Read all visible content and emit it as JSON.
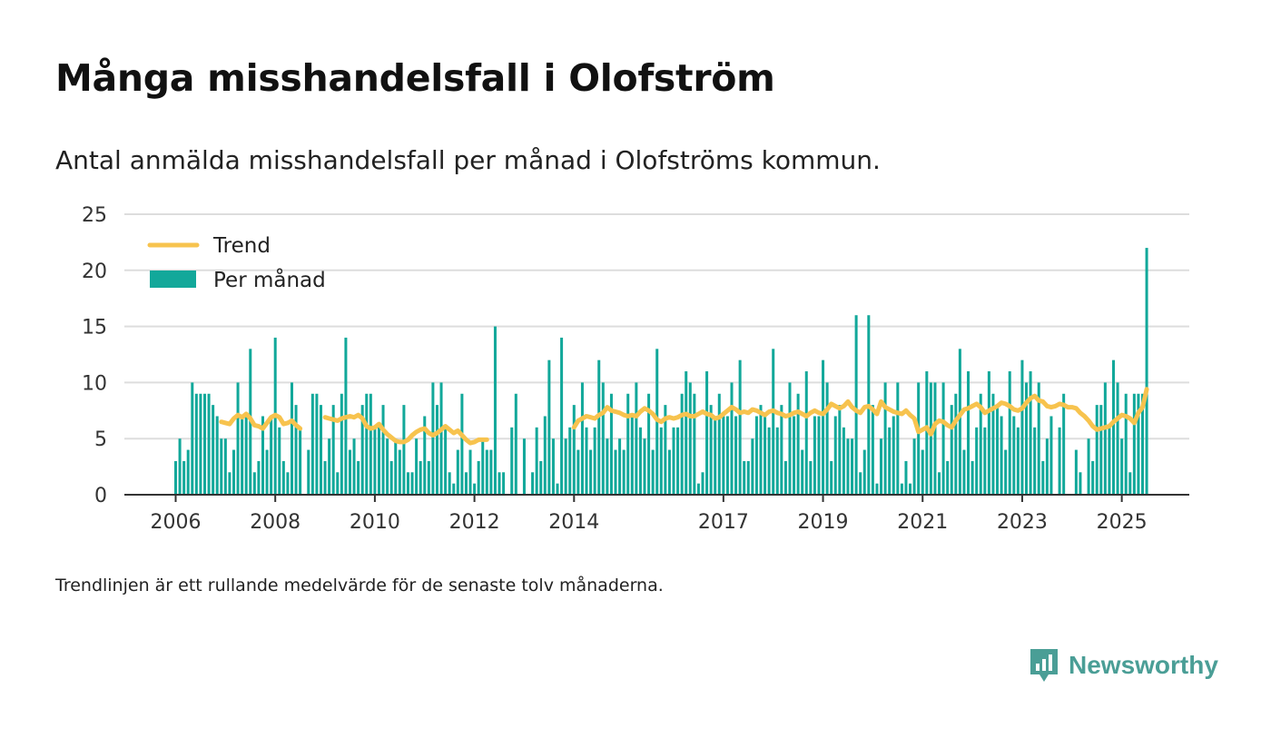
{
  "header": {
    "title": "Många misshandelsfall i Olofström",
    "subtitle": "Antal anmälda misshandelsfall per månad i Olofströms kommun."
  },
  "footer": {
    "note": "Trendlinjen är ett rullande medelvärde för de senaste tolv månaderna."
  },
  "brand": {
    "name": "Newsworthy",
    "icon": "newsworthy-logo-icon",
    "color": "#4a9e96"
  },
  "chart_data": {
    "type": "bar",
    "title": "Många misshandelsfall i Olofström",
    "subtitle": "Antal anmälda misshandelsfall per månad i Olofströms kommun.",
    "xlabel": "",
    "ylabel": "",
    "ylim": [
      0,
      25
    ],
    "yticks": [
      0,
      5,
      10,
      15,
      20,
      25
    ],
    "xticks": [
      "2006",
      "2008",
      "2010",
      "2012",
      "2014",
      "2017",
      "2019",
      "2021",
      "2023",
      "2025"
    ],
    "x_start": "2006-01",
    "x_end": "2025-05",
    "grid": true,
    "legend_position": "top-left",
    "colors": {
      "bars": "#12a89a",
      "trend": "#f7c34e",
      "grid": "#dddddd",
      "axis": "#333333"
    },
    "series": [
      {
        "name": "Per månad",
        "type": "bar",
        "values": [
          3,
          5,
          3,
          4,
          10,
          9,
          9,
          9,
          9,
          8,
          7,
          5,
          5,
          2,
          4,
          10,
          7,
          7,
          13,
          2,
          3,
          7,
          4,
          7,
          14,
          6,
          3,
          2,
          10,
          8,
          6,
          null,
          4,
          9,
          9,
          8,
          3,
          5,
          8,
          2,
          9,
          14,
          4,
          5,
          3,
          8,
          9,
          9,
          6,
          6,
          8,
          5,
          3,
          5,
          4,
          8,
          2,
          2,
          5,
          3,
          7,
          3,
          10,
          8,
          10,
          6,
          2,
          1,
          4,
          9,
          2,
          4,
          1,
          3,
          5,
          4,
          4,
          15,
          2,
          2,
          null,
          6,
          9,
          null,
          5,
          null,
          2,
          6,
          3,
          7,
          12,
          5,
          1,
          14,
          5,
          6,
          8,
          4,
          10,
          6,
          4,
          6,
          12,
          10,
          5,
          9,
          4,
          5,
          4,
          9,
          7,
          10,
          6,
          5,
          9,
          4,
          13,
          6,
          8,
          4,
          6,
          6,
          9,
          11,
          10,
          9,
          1,
          2,
          11,
          8,
          7,
          9,
          7,
          7,
          10,
          7,
          12,
          3,
          3,
          5,
          7,
          8,
          7,
          6,
          13,
          6,
          8,
          3,
          10,
          7,
          9,
          4,
          11,
          3,
          7,
          7,
          12,
          10,
          3,
          7,
          8,
          6,
          5,
          5,
          16,
          2,
          4,
          16,
          8,
          1,
          5,
          10,
          6,
          7,
          10,
          1,
          3,
          1,
          5,
          10,
          4,
          11,
          10,
          10,
          2,
          10,
          3,
          8,
          9,
          13,
          4,
          11,
          3,
          6,
          9,
          6,
          11,
          9,
          8,
          7,
          4,
          11,
          7,
          6,
          12,
          10,
          11,
          6,
          10,
          3,
          5,
          7,
          null,
          6,
          9,
          null,
          null,
          4,
          2,
          null,
          5,
          3,
          8,
          8,
          10,
          6,
          12,
          10,
          5,
          9,
          2,
          9,
          9,
          9,
          22
        ]
      },
      {
        "name": "Trend",
        "type": "line",
        "values": [
          null,
          null,
          null,
          null,
          null,
          null,
          null,
          null,
          null,
          null,
          null,
          6.5,
          6.4,
          6.3,
          6.8,
          7.1,
          6.9,
          7.2,
          6.8,
          6.2,
          6.1,
          5.9,
          6.4,
          6.9,
          7.1,
          6.9,
          6.3,
          6.4,
          6.6,
          6.2,
          5.9,
          null,
          null,
          null,
          null,
          null,
          6.9,
          6.8,
          6.7,
          6.6,
          6.8,
          6.9,
          7.0,
          6.9,
          7.1,
          6.8,
          6.1,
          5.9,
          6.0,
          6.3,
          5.8,
          5.4,
          5.1,
          4.8,
          4.7,
          4.7,
          4.9,
          5.3,
          5.6,
          5.8,
          5.9,
          5.5,
          5.3,
          5.5,
          5.8,
          6.1,
          5.8,
          5.5,
          5.7,
          5.3,
          4.9,
          4.6,
          4.7,
          4.9,
          4.9,
          4.9,
          null,
          null,
          null,
          null,
          null,
          null,
          null,
          null,
          null,
          null,
          null,
          null,
          null,
          null,
          null,
          null,
          null,
          null,
          null,
          null,
          6.0,
          6.6,
          6.8,
          7.0,
          6.9,
          6.8,
          7.1,
          7.3,
          7.8,
          7.5,
          7.4,
          7.3,
          7.1,
          7.0,
          7.1,
          7.0,
          7.4,
          7.7,
          7.5,
          7.2,
          6.7,
          6.5,
          6.8,
          6.9,
          6.8,
          6.9,
          7.1,
          7.2,
          7.0,
          7.0,
          7.2,
          7.4,
          7.2,
          7.1,
          6.8,
          6.9,
          7.2,
          7.5,
          7.8,
          7.6,
          7.3,
          7.4,
          7.3,
          7.6,
          7.5,
          7.3,
          7.1,
          7.4,
          7.5,
          7.3,
          7.2,
          7.0,
          7.1,
          7.3,
          7.4,
          7.2,
          7.0,
          7.3,
          7.5,
          7.3,
          7.2,
          7.6,
          8.1,
          7.9,
          7.7,
          7.9,
          8.3,
          7.8,
          7.5,
          7.3,
          7.8,
          7.9,
          7.6,
          7.2,
          8.3,
          7.8,
          7.6,
          7.4,
          7.3,
          7.2,
          7.5,
          7.1,
          6.8,
          5.6,
          5.8,
          6.0,
          5.4,
          6.3,
          6.6,
          6.5,
          6.2,
          6.0,
          6.6,
          7.1,
          7.6,
          7.7,
          7.9,
          8.1,
          7.8,
          7.3,
          7.5,
          7.7,
          7.9,
          8.2,
          8.1,
          7.9,
          7.6,
          7.5,
          7.7,
          8.2,
          8.6,
          8.8,
          8.4,
          8.3,
          7.9,
          7.8,
          7.9,
          8.1,
          8.0,
          7.8,
          7.8,
          7.7,
          7.3,
          7.0,
          6.6,
          6.1,
          5.8,
          5.9,
          6.0,
          6.1,
          6.5,
          6.8,
          7.1,
          7.0,
          6.8,
          6.4,
          7.3,
          7.8,
          9.4
        ]
      }
    ]
  }
}
